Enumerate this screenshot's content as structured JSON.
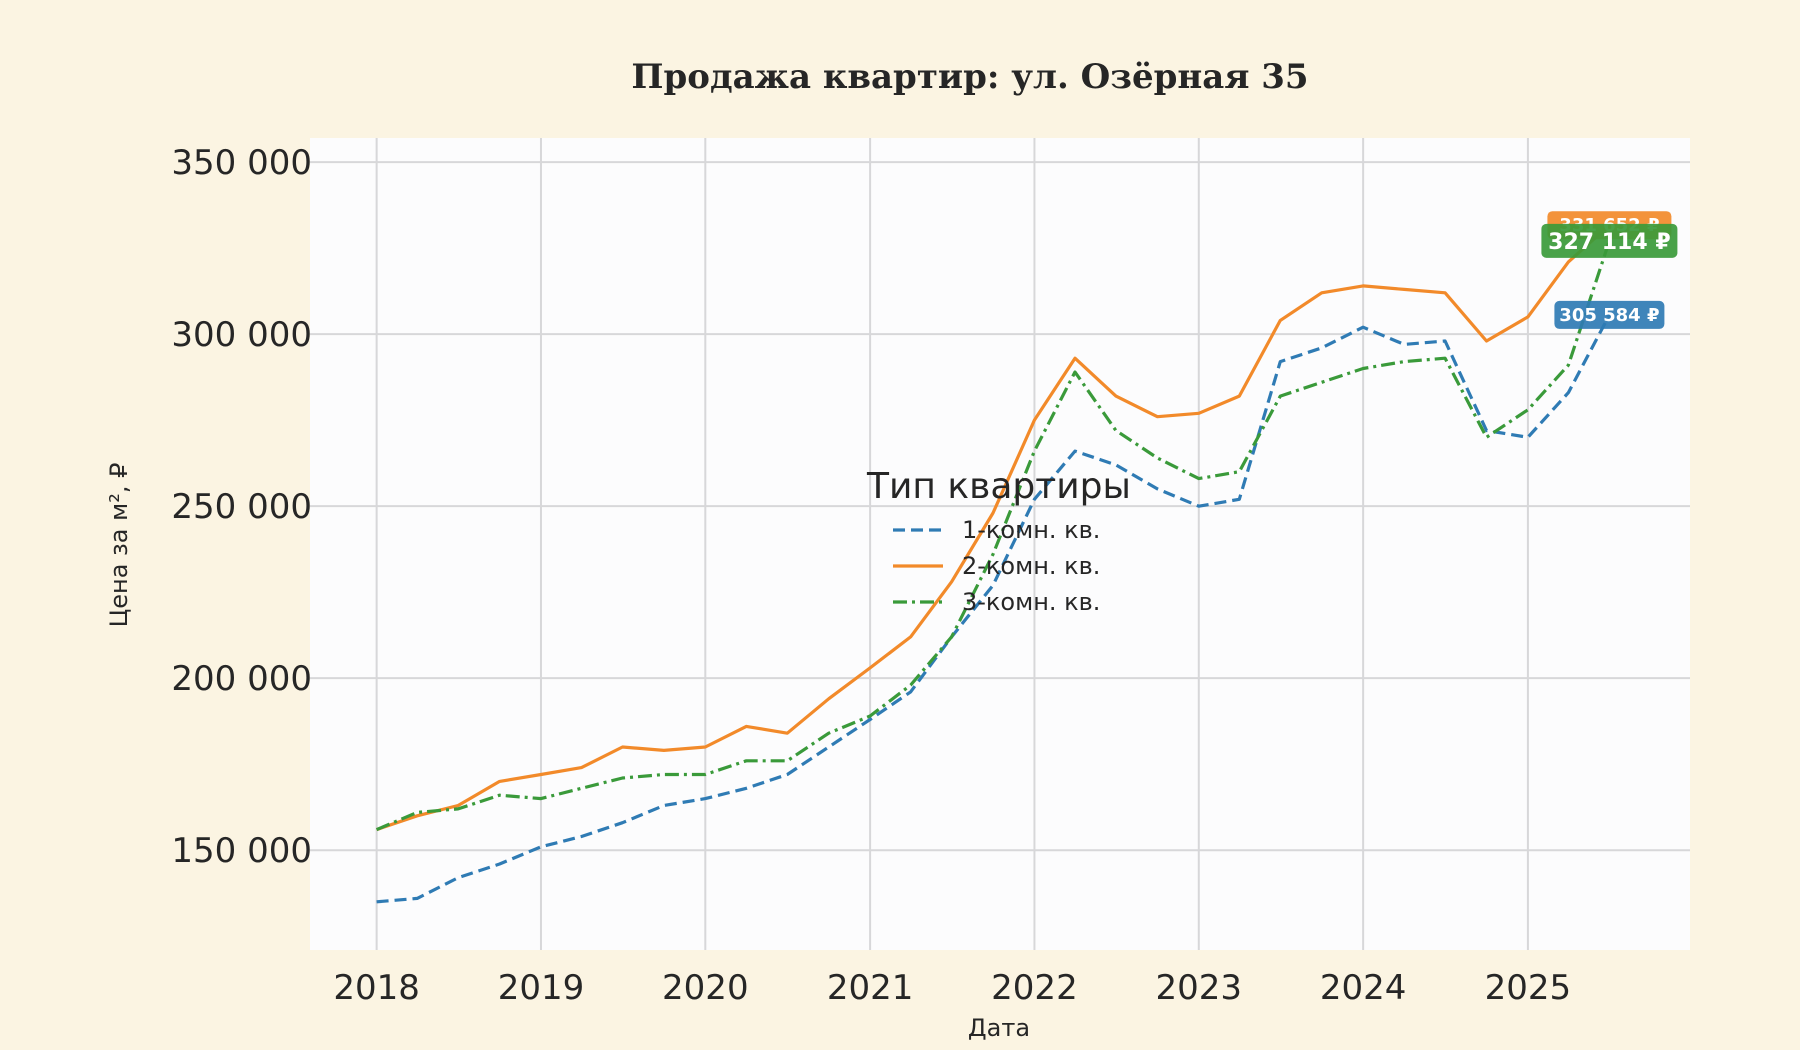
{
  "chart_data": {
    "type": "line",
    "title": "Продажа квартир: ул. Озёрная 35",
    "xlabel": "Дата",
    "ylabel": "Цена за м², ₽",
    "xlim": [
      "2017-08-06",
      "2025-12-27"
    ],
    "ylim": [
      121000,
      357000
    ],
    "grid": true,
    "x_ticks": [
      "2018",
      "2019",
      "2020",
      "2021",
      "2022",
      "2023",
      "2024",
      "2025"
    ],
    "y_ticks": [
      "150 000",
      "200 000",
      "250 000",
      "300 000",
      "350 000"
    ],
    "legend": {
      "title": "Тип квартиры",
      "placement": "center"
    },
    "x": [
      "2018-01-01",
      "2018-04-01",
      "2018-07-01",
      "2018-10-01",
      "2019-01-01",
      "2019-04-01",
      "2019-07-01",
      "2019-10-01",
      "2020-01-01",
      "2020-04-01",
      "2020-07-01",
      "2020-10-01",
      "2021-01-01",
      "2021-04-01",
      "2021-07-01",
      "2021-10-01",
      "2022-01-01",
      "2022-04-01",
      "2022-07-01",
      "2022-10-01",
      "2023-01-01",
      "2023-04-01",
      "2023-07-01",
      "2023-10-01",
      "2024-01-01",
      "2024-04-01",
      "2024-07-01",
      "2024-10-01",
      "2025-01-01",
      "2025-04-01",
      "2025-07-01"
    ],
    "series": [
      {
        "name": "1-комн. кв.",
        "color": "#2f7bb4",
        "dash": "dashed",
        "values": [
          135000,
          136000,
          142000,
          146000,
          151000,
          154000,
          158000,
          163000,
          165000,
          168000,
          172000,
          180000,
          188000,
          196000,
          212000,
          227000,
          252000,
          266000,
          262000,
          255000,
          250000,
          252000,
          292000,
          296000,
          302000,
          297000,
          298000,
          272000,
          270000,
          283000,
          305584
        ],
        "last_label": "305 584 ₽"
      },
      {
        "name": "2-комн. кв.",
        "color": "#f28a2a",
        "dash": "solid",
        "values": [
          156000,
          160000,
          163000,
          170000,
          172000,
          174000,
          180000,
          179000,
          180000,
          186000,
          184000,
          194000,
          203000,
          212000,
          228000,
          248000,
          275000,
          293000,
          282000,
          276000,
          277000,
          282000,
          304000,
          312000,
          314000,
          313000,
          312000,
          298000,
          305000,
          321000,
          331652
        ],
        "last_label": "331 652 ₽"
      },
      {
        "name": "3-комн. кв.",
        "color": "#3a9a3a",
        "dash": "dashdot",
        "values": [
          156000,
          161000,
          162000,
          166000,
          165000,
          168000,
          171000,
          172000,
          172000,
          176000,
          176000,
          184000,
          189000,
          198000,
          212000,
          236000,
          266000,
          289000,
          272000,
          264000,
          258000,
          260000,
          282000,
          286000,
          290000,
          292000,
          293000,
          270000,
          278000,
          291000,
          327114
        ],
        "last_label": "327 114 ₽"
      }
    ]
  }
}
